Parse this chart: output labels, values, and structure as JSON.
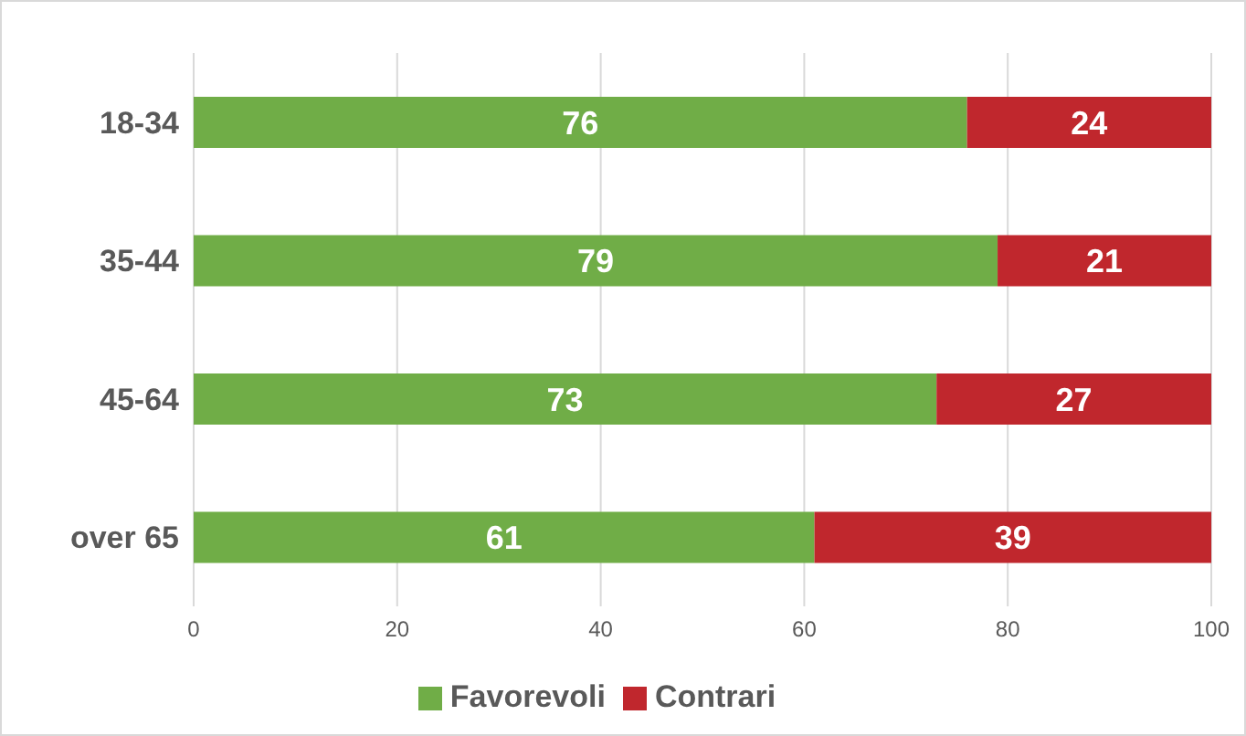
{
  "chart_data": {
    "type": "bar",
    "orientation": "horizontal",
    "stacked": true,
    "categories": [
      "18-34",
      "35-44",
      "45-64",
      "over 65"
    ],
    "series": [
      {
        "name": "Favorevoli",
        "color": "#70ad47",
        "values": [
          76,
          79,
          73,
          61
        ]
      },
      {
        "name": "Contrari",
        "color": "#c0272d",
        "values": [
          24,
          21,
          27,
          39
        ]
      }
    ],
    "xlim": [
      0,
      100
    ],
    "xticks": [
      0,
      20,
      40,
      60,
      80,
      100
    ],
    "grid": "x",
    "legend": "bottom",
    "data_labels": true
  }
}
